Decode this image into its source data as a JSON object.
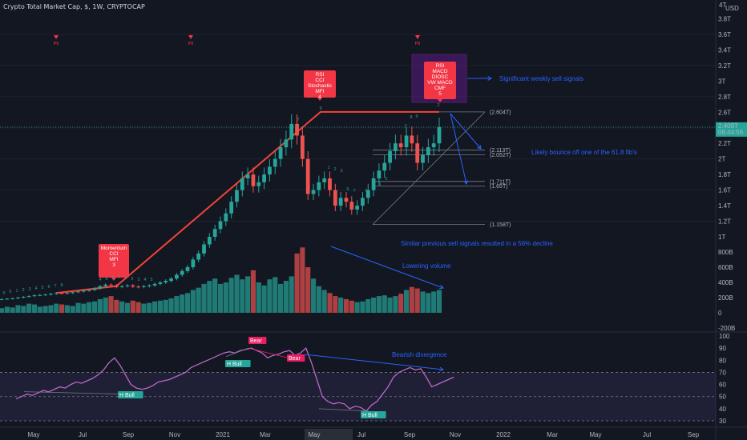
{
  "header": {
    "symbol_line": "Crypto Total Market Cap, $, 1W, CRYPTOCAP"
  },
  "chart_data": {
    "type": "candlestick",
    "price_axis": {
      "currency": "USD",
      "top_label": "4T",
      "ticks": [
        {
          "v": 3800000000000.0,
          "label": "3.8T"
        },
        {
          "v": 3600000000000.0,
          "label": "3.6T"
        },
        {
          "v": 3400000000000.0,
          "label": "3.4T"
        },
        {
          "v": 3200000000000.0,
          "label": "3.2T"
        },
        {
          "v": 3000000000000.0,
          "label": "3T"
        },
        {
          "v": 2800000000000.0,
          "label": "2.8T"
        },
        {
          "v": 2600000000000.0,
          "label": "2.6T"
        },
        {
          "v": 2200000000000.0,
          "label": "2.2T"
        },
        {
          "v": 2000000000000.0,
          "label": "2T"
        },
        {
          "v": 1800000000000.0,
          "label": "1.8T"
        },
        {
          "v": 1600000000000.0,
          "label": "1.6T"
        },
        {
          "v": 1400000000000.0,
          "label": "1.4T"
        },
        {
          "v": 1200000000000.0,
          "label": "1.2T"
        },
        {
          "v": 1000000000000.0,
          "label": "1T"
        },
        {
          "v": 800000000000.0,
          "label": "800B"
        },
        {
          "v": 600000000000.0,
          "label": "600B"
        },
        {
          "v": 400000000000.0,
          "label": "400B"
        },
        {
          "v": 200000000000.0,
          "label": "200B"
        },
        {
          "v": 0,
          "label": "0"
        },
        {
          "v": -200000000000.0,
          "label": "-200B"
        }
      ],
      "last_price": {
        "value": "2.409T",
        "countdown": "06:44:56"
      }
    },
    "time_axis": [
      "May",
      "Jul",
      "Sep",
      "Nov",
      "2021",
      "Mar",
      "May",
      "Jul",
      "Sep",
      "Nov",
      "2022",
      "Mar",
      "May",
      "Jul",
      "Sep"
    ],
    "rsi_axis": [
      100,
      90,
      80,
      70,
      60,
      50,
      40,
      30
    ],
    "fib_levels": [
      {
        "v": 2604000000000.0,
        "label": "(2.604T)"
      },
      {
        "v": 2113000000000.0,
        "label": "(2.113T)"
      },
      {
        "v": 2052000000000.0,
        "label": "(2.052T)"
      },
      {
        "v": 1711000000000.0,
        "label": "(1.711T)"
      },
      {
        "v": 1650000000000.0,
        "label": "(1.65T)"
      },
      {
        "v": 1158000000000.0,
        "label": "(1.158T)"
      }
    ],
    "annotations": [
      "Significant weekly sell signals",
      "Likely bounce off one of the 61.8 fib's",
      "Similar previous sell signals resulted in a 56% decline",
      "Lowering volume",
      "Bearish divergence"
    ],
    "signal_boxes": [
      {
        "lines": [
          "Momentum",
          "CCI",
          "MFI",
          "3"
        ]
      },
      {
        "lines": [
          "RSI",
          "CCI",
          "Stochastic",
          "MFI",
          "4"
        ]
      },
      {
        "lines": [
          "RSI",
          "MACD",
          "DIOSC",
          "VW MACD",
          "CMF",
          "5"
        ]
      }
    ],
    "p9_labels": [
      "P9",
      "P9",
      "P9"
    ],
    "rsi_labels": [
      "H Bull",
      "H Bull",
      "Bear",
      "Bear",
      "H Bull"
    ],
    "close": [
      180000000000.0,
      185000000000.0,
      190000000000.0,
      200000000000.0,
      210000000000.0,
      220000000000.0,
      230000000000.0,
      235000000000.0,
      240000000000.0,
      250000000000.0,
      260000000000.0,
      255000000000.0,
      260000000000.0,
      270000000000.0,
      280000000000.0,
      290000000000.0,
      300000000000.0,
      320000000000.0,
      350000000000.0,
      370000000000.0,
      360000000000.0,
      340000000000.0,
      350000000000.0,
      360000000000.0,
      345000000000.0,
      340000000000.0,
      350000000000.0,
      360000000000.0,
      380000000000.0,
      400000000000.0,
      420000000000.0,
      450000000000.0,
      500000000000.0,
      550000000000.0,
      600000000000.0,
      700000000000.0,
      780000000000.0,
      900000000000.0,
      1000000000000.0,
      1100000000000.0,
      1200000000000.0,
      1300000000000.0,
      1450000000000.0,
      1600000000000.0,
      1750000000000.0,
      1800000000000.0,
      1650000000000.0,
      1700000000000.0,
      1800000000000.0,
      1900000000000.0,
      2000000000000.0,
      2150000000000.0,
      2250000000000.0,
      2450000000000.0,
      2300000000000.0,
      2000000000000.0,
      1550000000000.0,
      1600000000000.0,
      1700000000000.0,
      1750000000000.0,
      1600000000000.0,
      1400000000000.0,
      1500000000000.0,
      1450000000000.0,
      1350000000000.0,
      1400000000000.0,
      1500000000000.0,
      1600000000000.0,
      1750000000000.0,
      1850000000000.0,
      1950000000000.0,
      2100000000000.0,
      2200000000000.0,
      2150000000000.0,
      2300000000000.0,
      2200000000000.0,
      1950000000000.0,
      2050000000000.0,
      2150000000000.0,
      2200000000000.0,
      2409000000000.0
    ],
    "rsi": [
      48,
      50,
      52,
      51,
      53,
      55,
      54,
      56,
      58,
      57,
      60,
      62,
      61,
      63,
      65,
      68,
      72,
      78,
      82,
      76,
      68,
      60,
      57,
      56,
      57,
      59,
      62,
      63,
      64,
      66,
      68,
      70,
      74,
      76,
      78,
      80,
      82,
      84,
      86,
      87,
      86,
      88,
      89,
      90,
      88,
      86,
      82,
      84,
      85,
      87,
      88,
      84,
      86,
      90,
      78,
      64,
      50,
      46,
      44,
      45,
      44,
      40,
      42,
      41,
      38,
      43,
      46,
      52,
      58,
      66,
      70,
      72,
      74,
      72,
      73,
      66,
      58,
      60,
      62,
      64,
      66
    ],
    "volume": [
      60000000000.0,
      80000000000.0,
      70000000000.0,
      100000000000.0,
      90000000000.0,
      120000000000.0,
      110000000000.0,
      80000000000.0,
      90000000000.0,
      100000000000.0,
      120000000000.0,
      110000000000.0,
      100000000000.0,
      90000000000.0,
      130000000000.0,
      120000000000.0,
      140000000000.0,
      150000000000.0,
      180000000000.0,
      200000000000.0,
      220000000000.0,
      170000000000.0,
      150000000000.0,
      130000000000.0,
      160000000000.0,
      140000000000.0,
      120000000000.0,
      130000000000.0,
      150000000000.0,
      160000000000.0,
      170000000000.0,
      190000000000.0,
      220000000000.0,
      240000000000.0,
      260000000000.0,
      300000000000.0,
      330000000000.0,
      380000000000.0,
      420000000000.0,
      450000000000.0,
      380000000000.0,
      400000000000.0,
      460000000000.0,
      500000000000.0,
      440000000000.0,
      480000000000.0,
      560000000000.0,
      400000000000.0,
      360000000000.0,
      440000000000.0,
      470000000000.0,
      380000000000.0,
      420000000000.0,
      480000000000.0,
      780000000000.0,
      860000000000.0,
      600000000000.0,
      450000000000.0,
      350000000000.0,
      300000000000.0,
      260000000000.0,
      220000000000.0,
      200000000000.0,
      180000000000.0,
      160000000000.0,
      140000000000.0,
      150000000000.0,
      180000000000.0,
      200000000000.0,
      220000000000.0,
      230000000000.0,
      200000000000.0,
      220000000000.0,
      250000000000.0,
      300000000000.0,
      340000000000.0,
      320000000000.0,
      280000000000.0,
      260000000000.0,
      280000000000.0,
      300000000000.0
    ]
  }
}
